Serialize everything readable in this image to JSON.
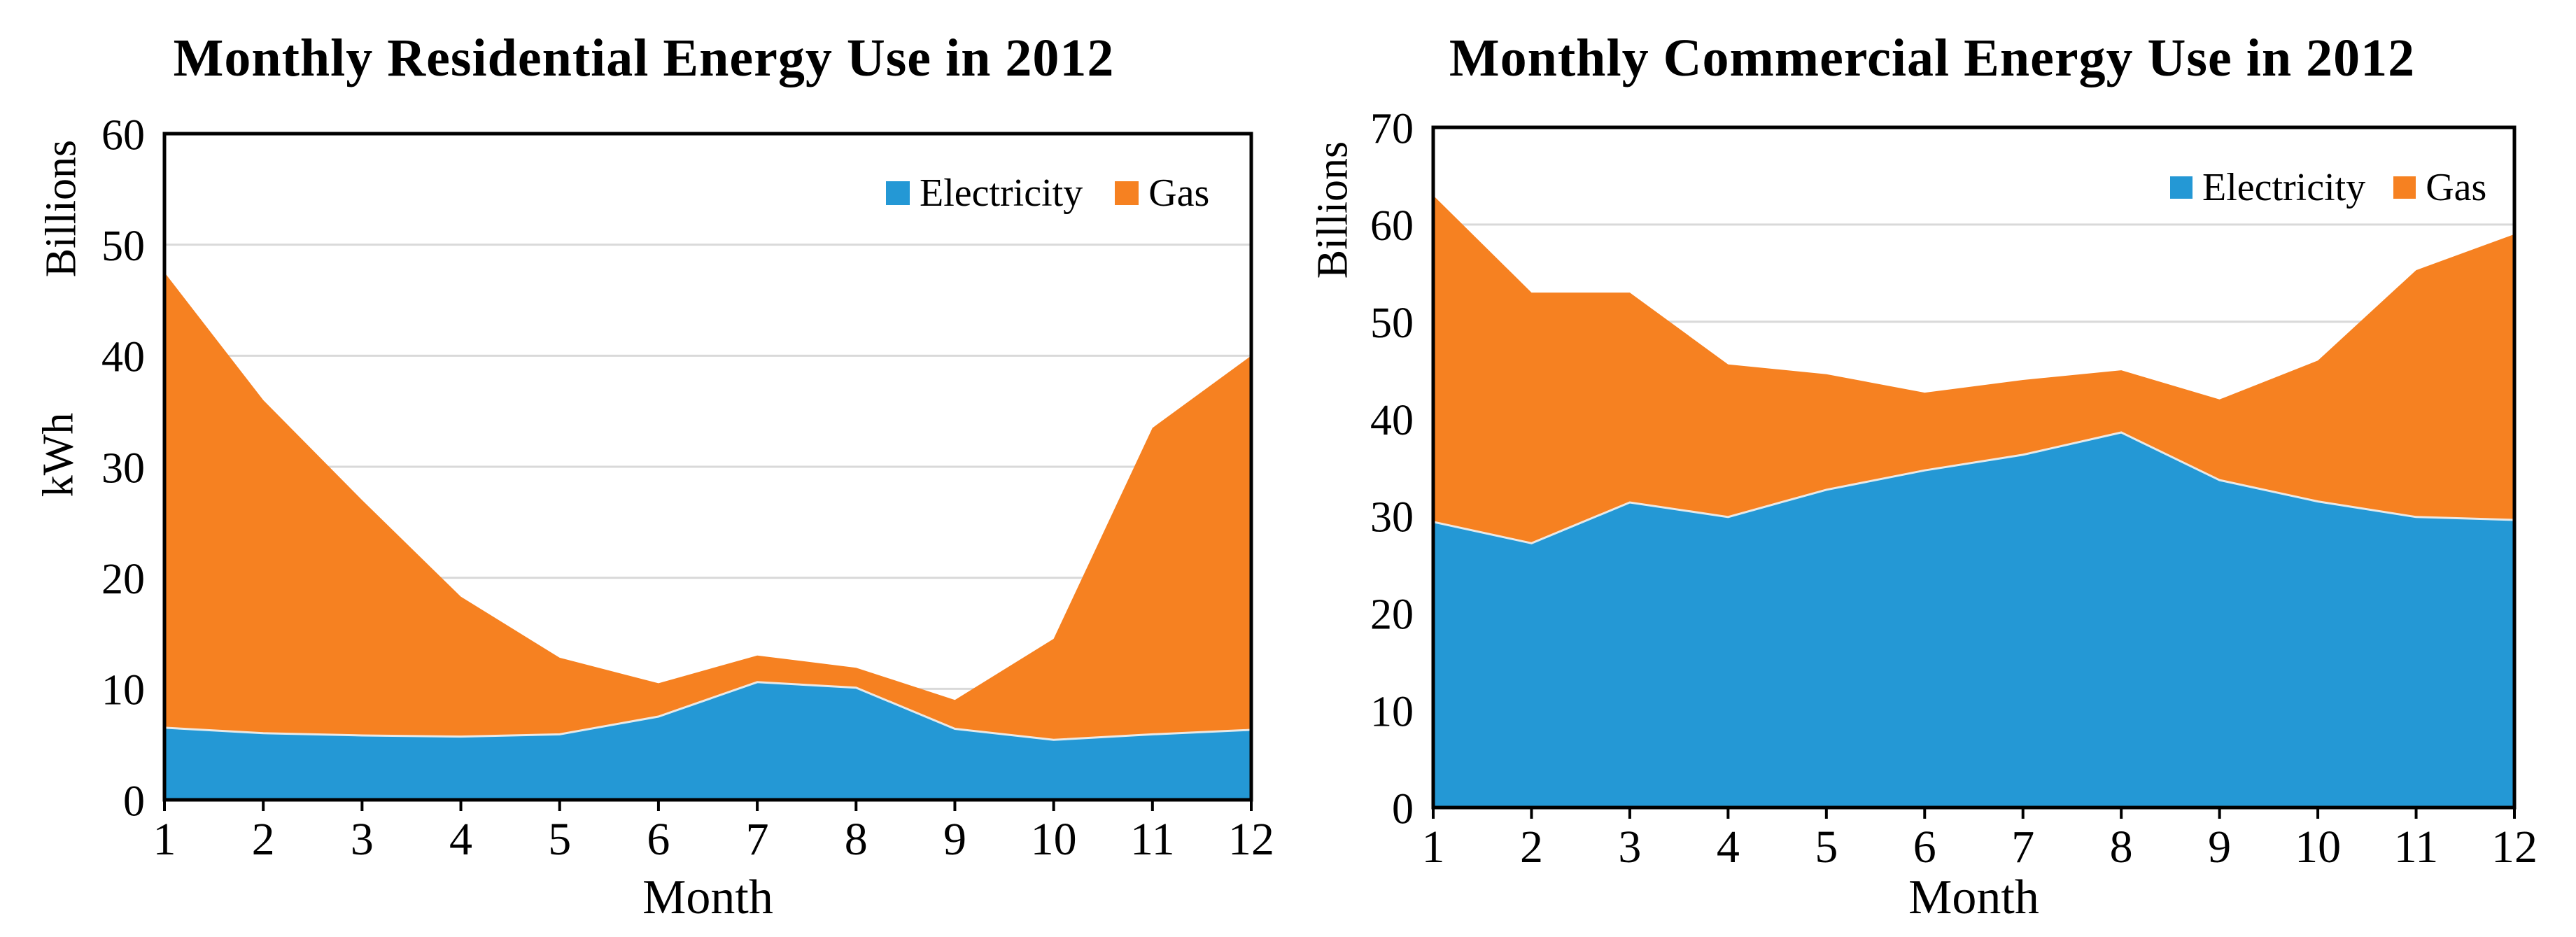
{
  "page": {
    "background": "#ffffff"
  },
  "colors": {
    "electricity": "#2498D5",
    "gas": "#F68121",
    "gridline": "#D9D9D9",
    "frame": "#000000",
    "series_divider": "#F2F2F2",
    "text": "#000000"
  },
  "chart_data": [
    {
      "type": "area",
      "stacked": true,
      "title": "Monthly Residential Energy Use in 2012",
      "categories": [
        "1",
        "2",
        "3",
        "4",
        "5",
        "6",
        "7",
        "8",
        "9",
        "10",
        "11",
        "12"
      ],
      "series": [
        {
          "name": "Electricity",
          "color": "#2498D5",
          "values": [
            6.5,
            6.0,
            5.8,
            5.7,
            5.9,
            7.5,
            10.6,
            10.1,
            6.4,
            5.4,
            5.9,
            6.3
          ]
        },
        {
          "name": "Gas",
          "color": "#F68121",
          "values": [
            41.0,
            30.0,
            21.2,
            12.6,
            6.9,
            3.0,
            2.4,
            1.8,
            2.6,
            9.1,
            27.6,
            33.7
          ]
        }
      ],
      "stacked_totals": [
        47.5,
        36.0,
        27.0,
        18.3,
        12.8,
        10.5,
        13.0,
        11.9,
        9.0,
        14.5,
        33.5,
        40.0
      ],
      "xlabel": "Month",
      "ylabel_top": "Billions",
      "ylabel_mid": "kWh",
      "ylim": [
        0,
        60
      ],
      "ytick_step": 10,
      "yticks": [
        "0",
        "10",
        "20",
        "30",
        "40",
        "50",
        "60"
      ],
      "grid": "horizontal-gray",
      "legend_position": "top-right-inside"
    },
    {
      "type": "area",
      "stacked": true,
      "title": "Monthly Commercial Energy Use in 2012",
      "categories": [
        "1",
        "2",
        "3",
        "4",
        "5",
        "6",
        "7",
        "8",
        "9",
        "10",
        "11",
        "12"
      ],
      "series": [
        {
          "name": "Electricity",
          "color": "#2498D5",
          "values": [
            29.4,
            27.2,
            31.4,
            29.9,
            32.7,
            34.7,
            36.3,
            38.6,
            33.7,
            31.5,
            29.9,
            29.6
          ]
        },
        {
          "name": "Gas",
          "color": "#F68121",
          "values": [
            33.6,
            25.8,
            21.6,
            15.7,
            11.9,
            8.0,
            7.7,
            6.4,
            8.3,
            14.5,
            25.4,
            29.4
          ]
        }
      ],
      "stacked_totals": [
        63.0,
        53.0,
        53.0,
        45.6,
        44.6,
        42.7,
        44.0,
        45.0,
        42.0,
        46.0,
        55.3,
        59.0
      ],
      "xlabel": "Month",
      "ylabel_top": "Billions",
      "ylim": [
        0,
        70
      ],
      "ytick_step": 10,
      "yticks": [
        "0",
        "10",
        "20",
        "30",
        "40",
        "50",
        "60",
        "70"
      ],
      "grid": "horizontal-gray",
      "legend_position": "top-right-inside"
    }
  ]
}
